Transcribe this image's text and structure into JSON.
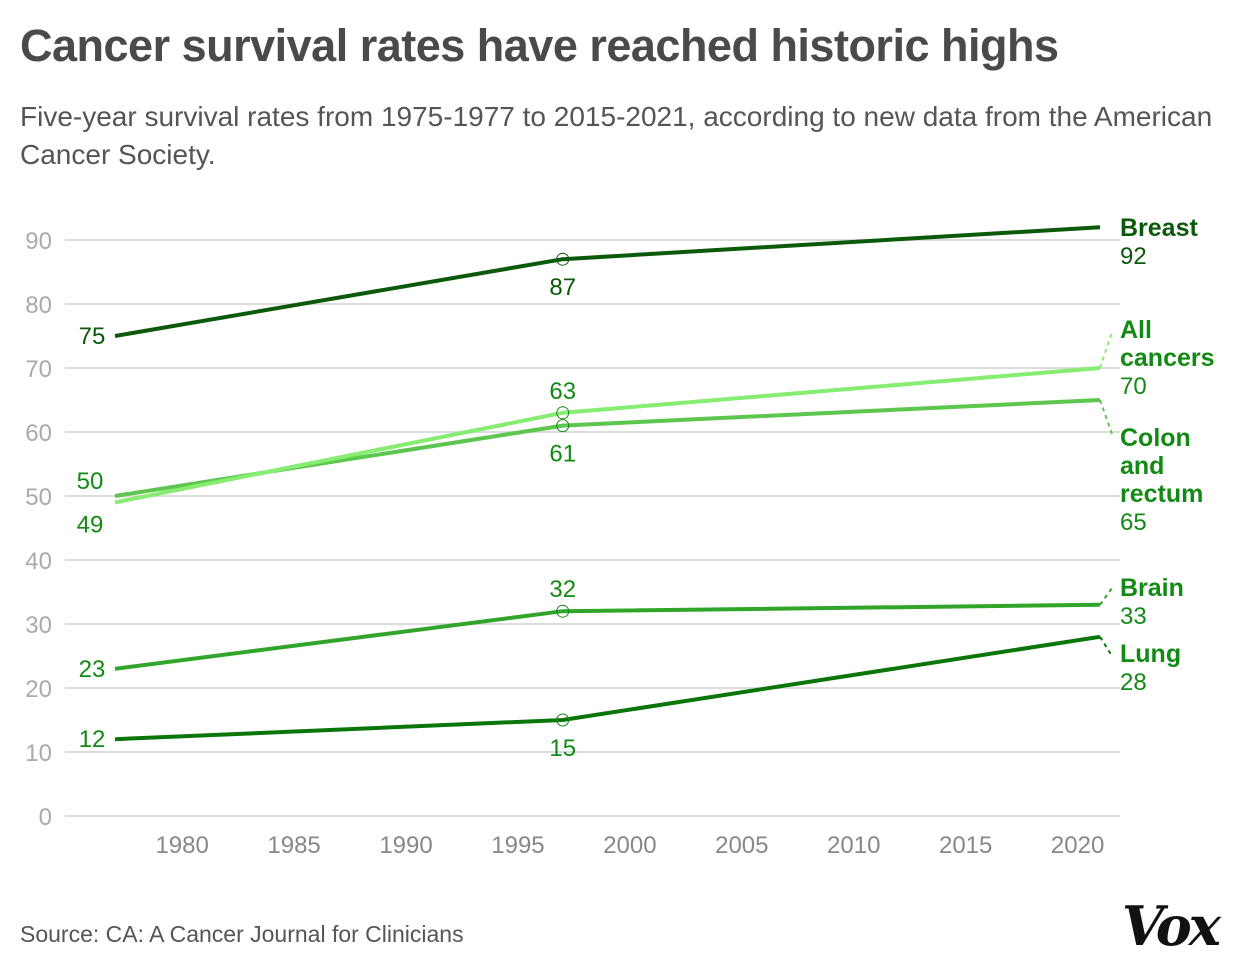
{
  "title": "Cancer survival rates have reached historic highs",
  "subtitle": "Five-year survival rates from 1975-1977 to 2015-2021, according to new data from the American Cancer Society.",
  "source": "Source: CA: A Cancer Journal for Clinicians",
  "logo": "Vox",
  "chart_data": {
    "type": "line",
    "title": "Cancer survival rates have reached historic highs",
    "x": [
      1977,
      1997,
      2021
    ],
    "xlim": [
      1975,
      2021
    ],
    "ylim": [
      0,
      90
    ],
    "xticks": [
      1980,
      1985,
      1990,
      1995,
      2000,
      2005,
      2010,
      2015,
      2020
    ],
    "yticks": [
      0,
      10,
      20,
      30,
      40,
      50,
      60,
      70,
      80,
      90
    ],
    "grid": "horizontal",
    "legend": "direct labels at right",
    "series": [
      {
        "name": "Breast",
        "values": [
          75,
          87,
          92
        ],
        "color": "#0b5a0b",
        "label_color": "#0b5a0b"
      },
      {
        "name": "All cancers",
        "values": [
          49,
          63,
          70
        ],
        "color": "#86ec72",
        "label_color": "#138a13"
      },
      {
        "name": "Colon and rectum",
        "values": [
          50,
          61,
          65
        ],
        "color": "#5cc64e",
        "label_color": "#138a13"
      },
      {
        "name": "Brain",
        "values": [
          23,
          32,
          33
        ],
        "color": "#31a52a",
        "label_color": "#138a13"
      },
      {
        "name": "Lung",
        "values": [
          12,
          15,
          28
        ],
        "color": "#0a760a",
        "label_color": "#138a13"
      }
    ]
  }
}
